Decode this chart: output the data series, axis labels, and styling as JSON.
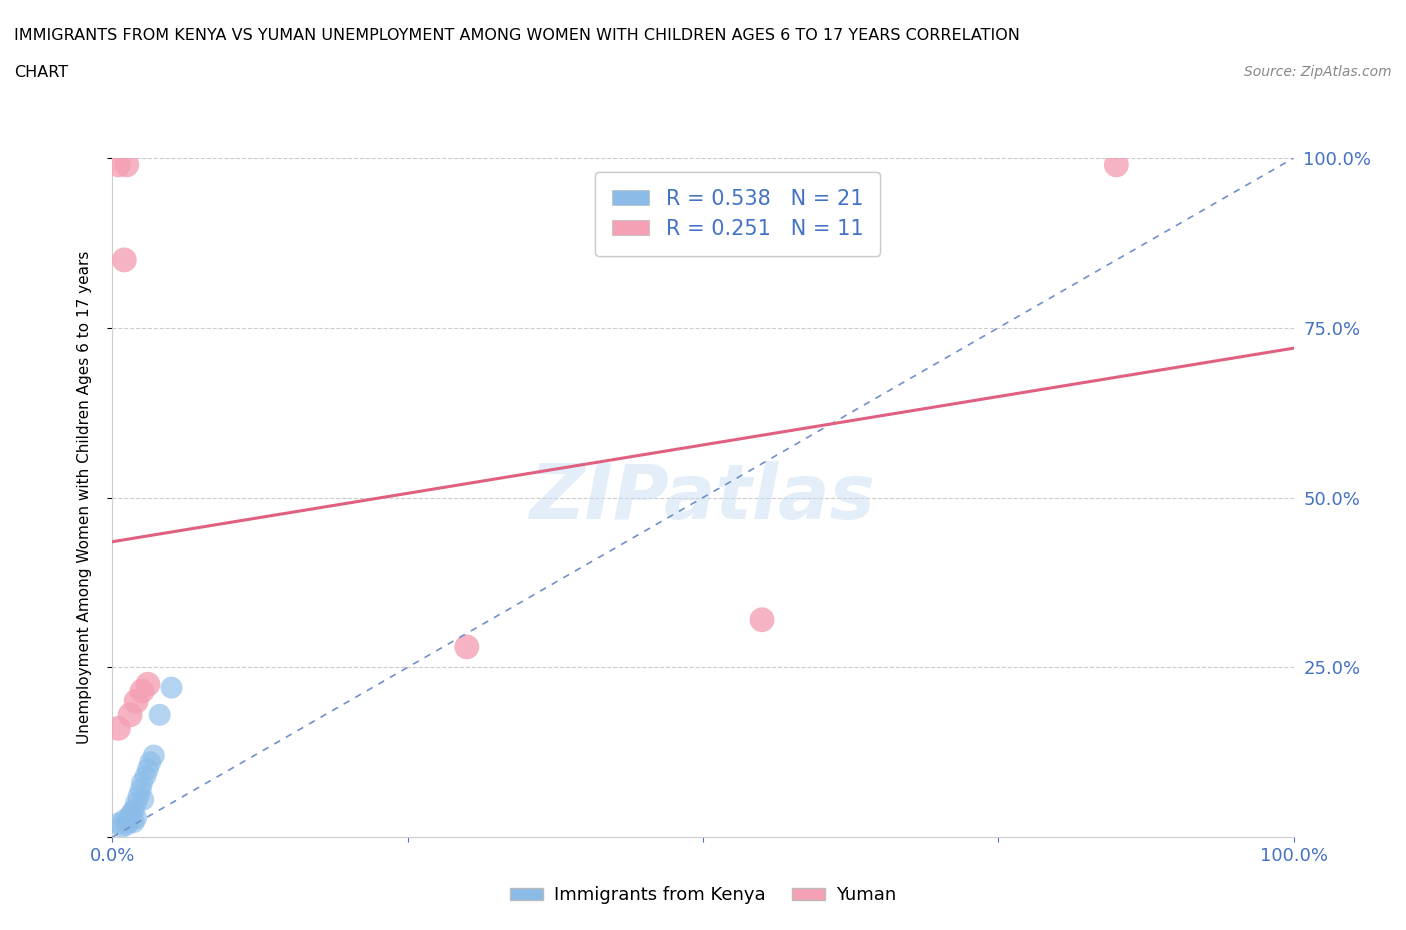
{
  "title_line1": "IMMIGRANTS FROM KENYA VS YUMAN UNEMPLOYMENT AMONG WOMEN WITH CHILDREN AGES 6 TO 17 YEARS CORRELATION",
  "title_line2": "CHART",
  "source": "Source: ZipAtlas.com",
  "ylabel": "Unemployment Among Women with Children Ages 6 to 17 years",
  "xlim": [
    0.0,
    1.0
  ],
  "ylim": [
    0.0,
    1.0
  ],
  "xticks": [
    0.0,
    0.25,
    0.5,
    0.75,
    1.0
  ],
  "yticks": [
    0.0,
    0.25,
    0.5,
    0.75,
    1.0
  ],
  "xtick_labels": [
    "0.0%",
    "",
    "",
    "",
    "100.0%"
  ],
  "right_ytick_labels": [
    "",
    "25.0%",
    "50.0%",
    "75.0%",
    "100.0%"
  ],
  "kenya_R": 0.538,
  "kenya_N": 21,
  "yuman_R": 0.251,
  "yuman_N": 11,
  "kenya_color": "#8bbce8",
  "yuman_color": "#f4a0b5",
  "kenya_line_color": "#7090cc",
  "yuman_line_color": "#e06080",
  "watermark": "ZIPatlas",
  "kenya_points_x": [
    0.005,
    0.008,
    0.01,
    0.012,
    0.014,
    0.015,
    0.016,
    0.018,
    0.018,
    0.02,
    0.02,
    0.022,
    0.024,
    0.025,
    0.026,
    0.028,
    0.03,
    0.032,
    0.035,
    0.04,
    0.05
  ],
  "kenya_points_y": [
    0.02,
    0.015,
    0.025,
    0.018,
    0.022,
    0.03,
    0.035,
    0.04,
    0.022,
    0.05,
    0.028,
    0.06,
    0.07,
    0.08,
    0.055,
    0.09,
    0.1,
    0.11,
    0.12,
    0.18,
    0.22
  ],
  "yuman_points_x": [
    0.005,
    0.01,
    0.012,
    0.015,
    0.02,
    0.025,
    0.3,
    0.55,
    0.85,
    0.005,
    0.03
  ],
  "yuman_points_y": [
    0.99,
    0.85,
    0.99,
    0.18,
    0.2,
    0.215,
    0.28,
    0.32,
    0.99,
    0.16,
    0.225
  ],
  "kenya_line_x": [
    0.0,
    1.0
  ],
  "kenya_line_y": [
    0.0,
    1.0
  ],
  "yuman_line_x0": 0.0,
  "yuman_line_x1": 1.0,
  "yuman_line_y0": 0.435,
  "yuman_line_y1": 0.72,
  "grid_color": "#cccccc",
  "grid_linestyle": "--",
  "background_color": "#ffffff",
  "tick_color": "#4472c4",
  "tick_fontsize": 13,
  "label_color": "#4472c4"
}
